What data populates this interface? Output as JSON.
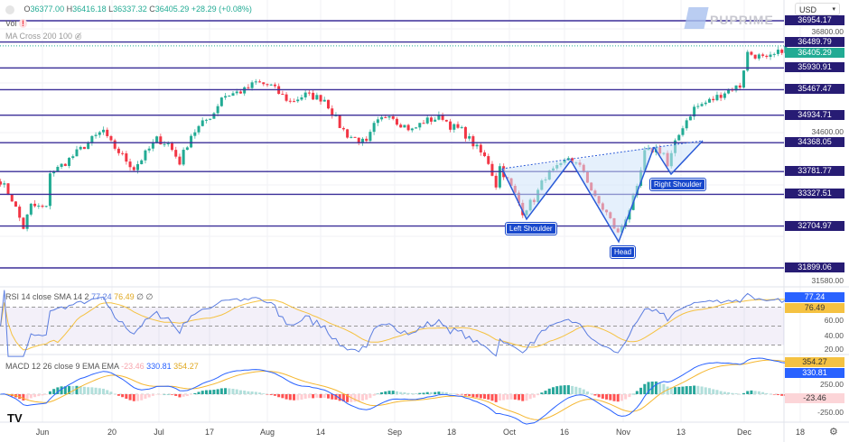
{
  "header": {
    "ohlc": {
      "o_label": "O",
      "o": "36377.00",
      "h_label": "H",
      "h": "36416.18",
      "l_label": "L",
      "l": "36337.32",
      "c_label": "C",
      "c": "36405.29",
      "change": "+28.29 (+0.08%)"
    },
    "vol_label": "Vol",
    "ma_label": "MA Cross 200 100",
    "currency": "USD",
    "watermark": "PUPRIME"
  },
  "rsi_legend": {
    "label": "RSI 14 close SMA 14 2",
    "rsi": "77.24",
    "sma": "76.49",
    "extra": "∅ ∅"
  },
  "macd_legend": {
    "label": "MACD 12 26 close 9 EMA EMA",
    "hist": "-23.46",
    "macd": "330.81",
    "signal": "354.27"
  },
  "colors": {
    "up": "#22ab94",
    "down": "#f23645",
    "level": "#3b2f98",
    "level_label": "#271c74",
    "rsi": "#5b7de0",
    "sma": "#f5c242",
    "pattern": "#2a5bd7",
    "pattern_fill": "#cfe3fa"
  },
  "chart_data": [
    {
      "type": "candlestick",
      "scale": "log",
      "ylim": [
        31580,
        37100
      ],
      "current_price": "36405.29",
      "price_ticks": [
        "36800.00",
        "34600.00",
        "31580.00"
      ],
      "levels": [
        "36954.17",
        "36489.79",
        "35930.91",
        "35467.47",
        "34934.71",
        "34368.05",
        "33781.77",
        "33327.51",
        "32704.97",
        "31899.06"
      ],
      "x_ticks": [
        "Jun",
        "20",
        "Jul",
        "17",
        "Aug",
        "14",
        "Sep",
        "18",
        "Oct",
        "16",
        "Nov",
        "13",
        "Dec",
        "18"
      ],
      "close_path": [
        [
          "05-21",
          33602
        ],
        [
          "05-24",
          33232
        ],
        [
          "05-27",
          32676
        ],
        [
          "05-29",
          33100
        ],
        [
          "06-02",
          33047
        ],
        [
          "06-03",
          33787
        ],
        [
          "06-05",
          33843
        ],
        [
          "06-08",
          34028
        ],
        [
          "06-14",
          34435
        ],
        [
          "06-17",
          34620
        ],
        [
          "06-18",
          34435
        ],
        [
          "06-23",
          34010
        ],
        [
          "06-25",
          33843
        ],
        [
          "07-01",
          34435
        ],
        [
          "07-04",
          34343
        ],
        [
          "07-07",
          33972
        ],
        [
          "07-10",
          34528
        ],
        [
          "07-16",
          34990
        ],
        [
          "07-18",
          35325
        ],
        [
          "07-24",
          35454
        ],
        [
          "07-27",
          35621
        ],
        [
          "07-31",
          35547
        ],
        [
          "08-02",
          35398
        ],
        [
          "08-05",
          35213
        ],
        [
          "08-09",
          35361
        ],
        [
          "08-14",
          35269
        ],
        [
          "08-18",
          34713
        ],
        [
          "08-20",
          34528
        ],
        [
          "08-25",
          34343
        ],
        [
          "08-27",
          34713
        ],
        [
          "08-31",
          34990
        ],
        [
          "09-02",
          34806
        ],
        [
          "09-06",
          34620
        ],
        [
          "09-09",
          34806
        ],
        [
          "09-14",
          34898
        ],
        [
          "09-16",
          34713
        ],
        [
          "09-19",
          34620
        ],
        [
          "09-22",
          34343
        ],
        [
          "09-26",
          33972
        ],
        [
          "09-28",
          33510
        ],
        [
          "09-29",
          33880
        ],
        [
          "10-03",
          33325
        ],
        [
          "10-05",
          32991
        ],
        [
          "10-08",
          33232
        ],
        [
          "10-11",
          33695
        ],
        [
          "10-15",
          33880
        ],
        [
          "10-17",
          34065
        ],
        [
          "10-21",
          33787
        ],
        [
          "10-24",
          33232
        ],
        [
          "10-27",
          32954
        ],
        [
          "10-30",
          32546
        ],
        [
          "11-02",
          33047
        ],
        [
          "11-04",
          33417
        ],
        [
          "11-06",
          34157
        ],
        [
          "11-09",
          34250
        ],
        [
          "11-11",
          34157
        ],
        [
          "11-12",
          33880
        ],
        [
          "11-14",
          34343
        ],
        [
          "11-16",
          34713
        ],
        [
          "11-19",
          35084
        ],
        [
          "11-24",
          35269
        ],
        [
          "11-28",
          35473
        ],
        [
          "12-01",
          35547
        ],
        [
          "12-02",
          35917
        ],
        [
          "12-03",
          36250
        ],
        [
          "12-06",
          36176
        ],
        [
          "12-08",
          36102
        ],
        [
          "12-11",
          36250
        ],
        [
          "12-13",
          36405
        ]
      ],
      "annotations": [
        "Left Shoulder",
        "Head",
        "Right Shoulder"
      ]
    },
    {
      "type": "line",
      "name": "RSI 14",
      "ylim": [
        15,
        90
      ],
      "ticks": [
        "60.00",
        "40.00",
        "20.00"
      ],
      "bands": [
        70,
        50,
        30
      ],
      "last": "77.24",
      "sma_last": "76.49"
    },
    {
      "type": "bar+line",
      "name": "MACD 12 26 9",
      "ticks": [
        "250.00",
        "-250.00"
      ],
      "macd_last": "330.81",
      "signal_last": "354.27",
      "hist_last": "-23.46"
    }
  ]
}
